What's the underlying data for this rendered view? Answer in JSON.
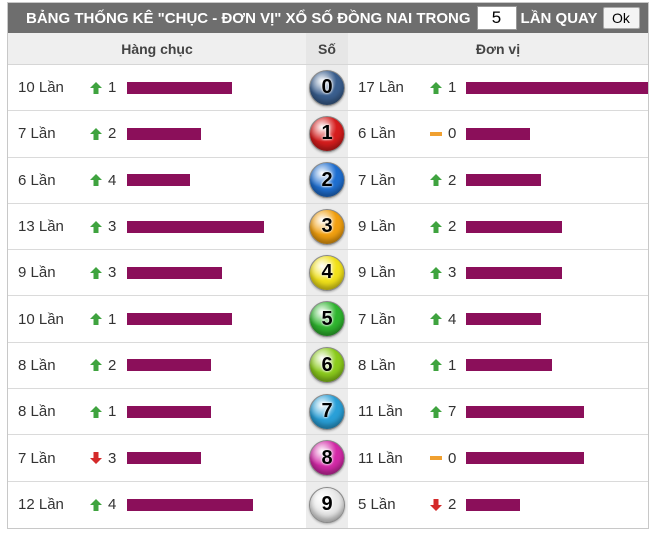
{
  "header": {
    "title_prefix": "BẢNG THỐNG KÊ \"CHỤC - ĐƠN VỊ\" XỔ SỐ ĐỒNG NAI TRONG",
    "count_value": "5",
    "title_suffix": "LẦN QUAY",
    "ok_label": "Ok"
  },
  "columns": {
    "tens": "Hàng chục",
    "digit": "Số",
    "units": "Đơn vị"
  },
  "scale_max": 17,
  "rows": [
    {
      "digit": "0",
      "ball_color": "#3a5f8f",
      "tens": {
        "times": "10 Lần",
        "count": 10,
        "trend": "up",
        "delta": "1"
      },
      "units": {
        "times": "17 Lần",
        "count": 17,
        "trend": "up",
        "delta": "1"
      }
    },
    {
      "digit": "1",
      "ball_color": "#d61d1d",
      "tens": {
        "times": "7 Lần",
        "count": 7,
        "trend": "up",
        "delta": "2"
      },
      "units": {
        "times": "6 Lần",
        "count": 6,
        "trend": "flat",
        "delta": "0"
      }
    },
    {
      "digit": "2",
      "ball_color": "#1f6fd1",
      "tens": {
        "times": "6 Lần",
        "count": 6,
        "trend": "up",
        "delta": "4"
      },
      "units": {
        "times": "7 Lần",
        "count": 7,
        "trend": "up",
        "delta": "2"
      }
    },
    {
      "digit": "3",
      "ball_color": "#f2a010",
      "tens": {
        "times": "13 Lần",
        "count": 13,
        "trend": "up",
        "delta": "3"
      },
      "units": {
        "times": "9 Lần",
        "count": 9,
        "trend": "up",
        "delta": "2"
      }
    },
    {
      "digit": "4",
      "ball_color": "#f2e21a",
      "tens": {
        "times": "9 Lần",
        "count": 9,
        "trend": "up",
        "delta": "3"
      },
      "units": {
        "times": "9 Lần",
        "count": 9,
        "trend": "up",
        "delta": "3"
      }
    },
    {
      "digit": "5",
      "ball_color": "#2fb62f",
      "tens": {
        "times": "10 Lần",
        "count": 10,
        "trend": "up",
        "delta": "1"
      },
      "units": {
        "times": "7 Lần",
        "count": 7,
        "trend": "up",
        "delta": "4"
      }
    },
    {
      "digit": "6",
      "ball_color": "#8ccc1c",
      "tens": {
        "times": "8 Lần",
        "count": 8,
        "trend": "up",
        "delta": "2"
      },
      "units": {
        "times": "8 Lần",
        "count": 8,
        "trend": "up",
        "delta": "1"
      }
    },
    {
      "digit": "7",
      "ball_color": "#2aa0d8",
      "tens": {
        "times": "8 Lần",
        "count": 8,
        "trend": "up",
        "delta": "1"
      },
      "units": {
        "times": "11 Lần",
        "count": 11,
        "trend": "up",
        "delta": "7"
      }
    },
    {
      "digit": "8",
      "ball_color": "#d42aa8",
      "tens": {
        "times": "7 Lần",
        "count": 7,
        "trend": "down",
        "delta": "3"
      },
      "units": {
        "times": "11 Lần",
        "count": 11,
        "trend": "flat",
        "delta": "0"
      }
    },
    {
      "digit": "9",
      "ball_color": "#e8e8e8",
      "tens": {
        "times": "12 Lần",
        "count": 12,
        "trend": "up",
        "delta": "4"
      },
      "units": {
        "times": "5 Lần",
        "count": 5,
        "trend": "down",
        "delta": "2"
      }
    }
  ],
  "colors": {
    "bar": "#8b0f5a",
    "trend_up": "#3fa33f",
    "trend_down": "#d42a2a",
    "trend_flat": "#f0a030"
  }
}
